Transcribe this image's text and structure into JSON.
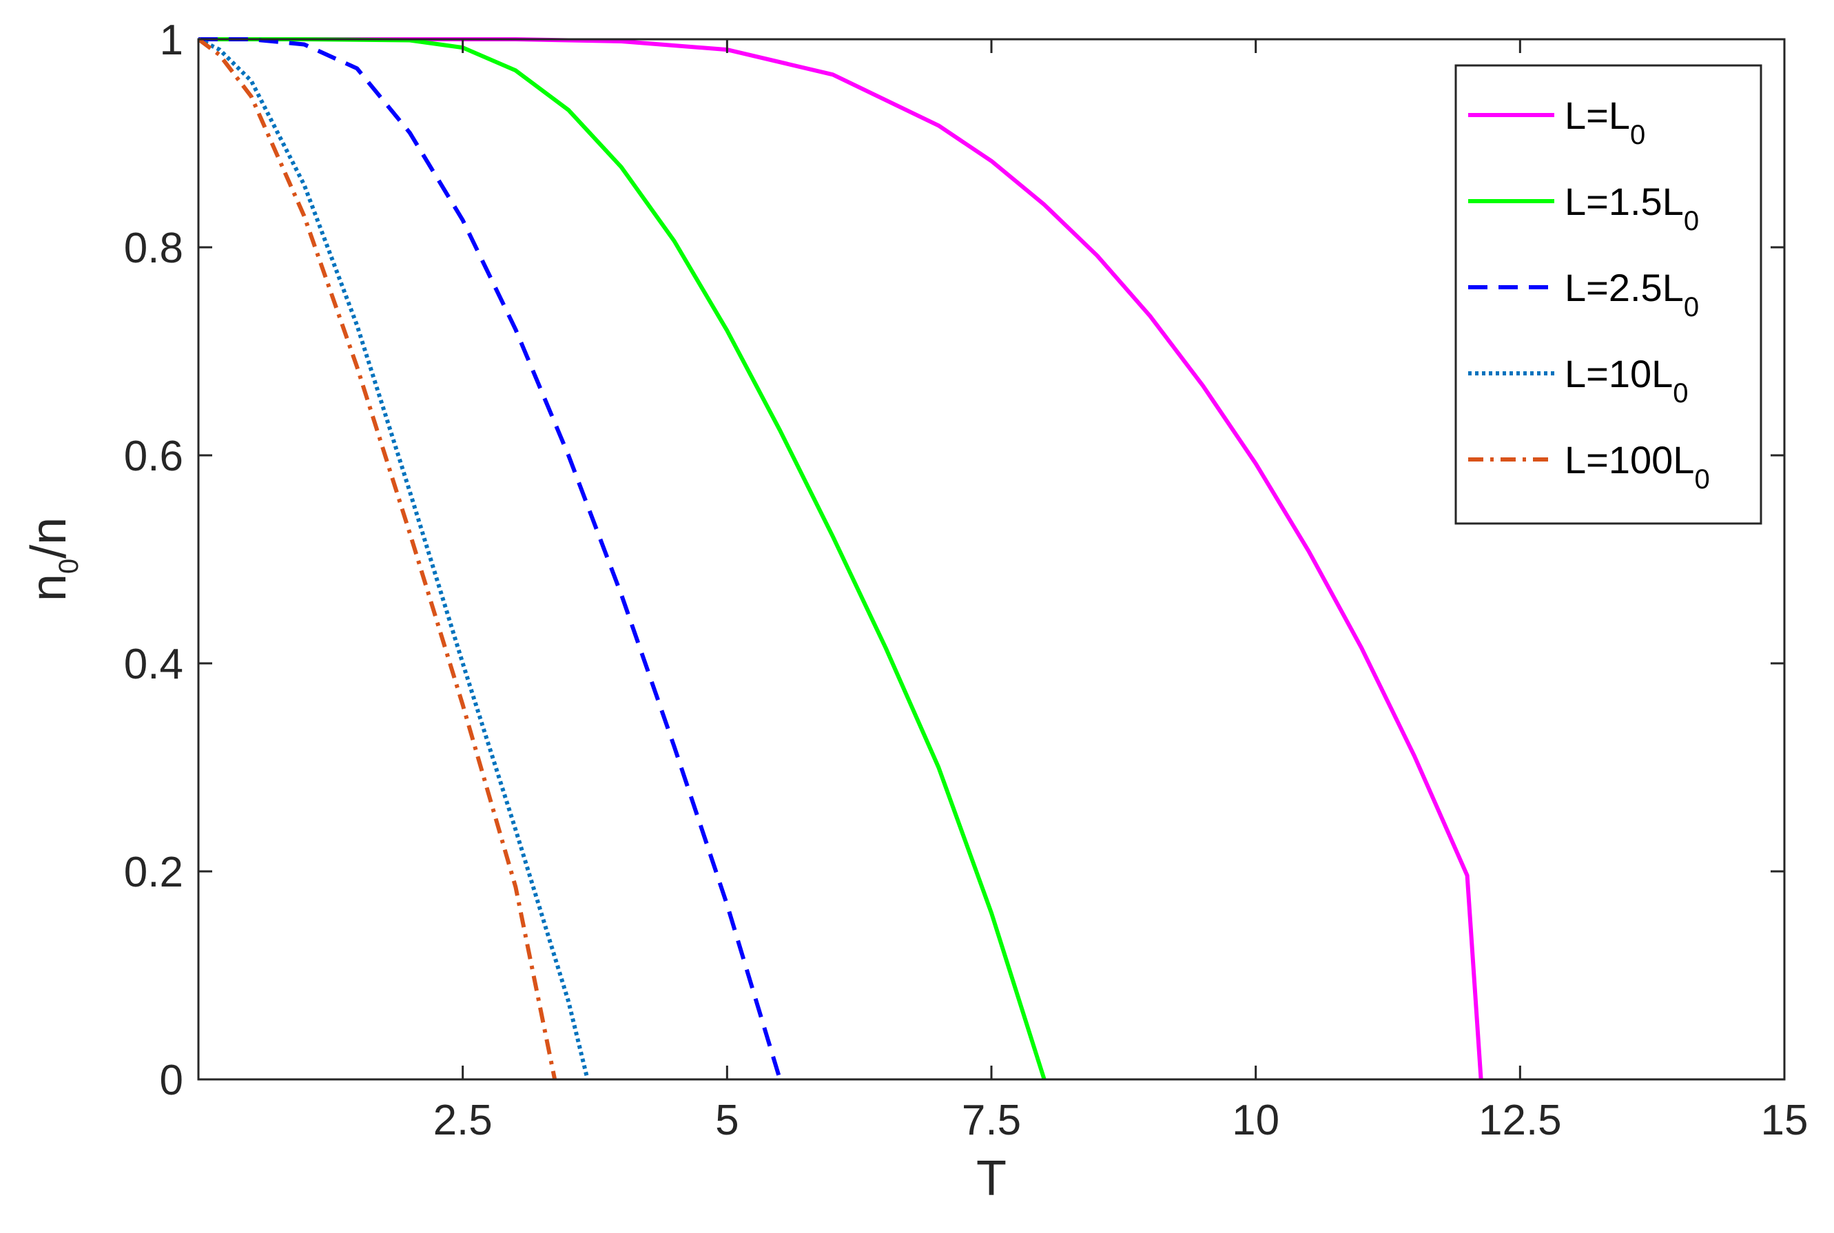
{
  "chart_data": {
    "type": "line",
    "xlabel": "T",
    "ylabel": {
      "base": "n",
      "sub": "0",
      "rest": "/n"
    },
    "xlim": [
      0,
      15
    ],
    "ylim": [
      0,
      1
    ],
    "xticks": [
      2.5,
      5,
      7.5,
      10,
      12.5,
      15
    ],
    "xtick_labels": [
      "2.5",
      "5",
      "7.5",
      "10",
      "12.5",
      "15"
    ],
    "yticks": [
      0,
      0.2,
      0.4,
      0.6,
      0.8,
      1
    ],
    "ytick_labels": [
      "0",
      "0.2",
      "0.4",
      "0.6",
      "0.8",
      "1"
    ],
    "grid": false,
    "legend_position": "top-right",
    "series": [
      {
        "name": "L=L0",
        "label_main": "L=L",
        "label_sub": "0",
        "color": "#FF00FF",
        "dash": "solid",
        "x": [
          0,
          1,
          2,
          3,
          4,
          5,
          6,
          7,
          7.5,
          8,
          8.5,
          9,
          9.5,
          10,
          10.5,
          11,
          11.5,
          12,
          12.13
        ],
        "y": [
          1,
          1,
          1,
          1,
          0.998,
          0.99,
          0.966,
          0.917,
          0.883,
          0.841,
          0.792,
          0.734,
          0.667,
          0.592,
          0.508,
          0.415,
          0.311,
          0.196,
          0
        ]
      },
      {
        "name": "L=1.5L0",
        "label_main": "L=1.5L",
        "label_sub": "0",
        "color": "#00FF00",
        "dash": "solid",
        "x": [
          0,
          1,
          2,
          2.5,
          3,
          3.5,
          4,
          4.5,
          5,
          5.5,
          6,
          6.5,
          7,
          7.5,
          8
        ],
        "y": [
          1,
          1,
          0.999,
          0.992,
          0.97,
          0.932,
          0.877,
          0.806,
          0.72,
          0.624,
          0.522,
          0.415,
          0.3,
          0.16,
          0
        ]
      },
      {
        "name": "L=2.5L0",
        "label_main": "L=2.5L",
        "label_sub": "0",
        "color": "#0000FF",
        "dash": "dashed",
        "x": [
          0,
          0.5,
          1,
          1.5,
          2,
          2.5,
          3,
          3.5,
          4,
          4.5,
          5,
          5.5
        ],
        "y": [
          1,
          1,
          0.995,
          0.972,
          0.91,
          0.826,
          0.721,
          0.6,
          0.466,
          0.32,
          0.168,
          0
        ]
      },
      {
        "name": "L=10L0",
        "label_main": "L=10L",
        "label_sub": "0",
        "color": "#0072BD",
        "dash": "dotted",
        "x": [
          0,
          0.2,
          0.5,
          1,
          1.5,
          2,
          2.5,
          3,
          3.5,
          3.68
        ],
        "y": [
          1,
          0.99,
          0.96,
          0.86,
          0.725,
          0.565,
          0.4,
          0.24,
          0.075,
          0
        ]
      },
      {
        "name": "L=100L0",
        "label_main": "L=100L",
        "label_sub": "0",
        "color": "#D95319",
        "dash": "dashdot",
        "x": [
          0,
          0.2,
          0.5,
          1,
          1.5,
          2,
          2.5,
          3,
          3.37
        ],
        "y": [
          1,
          0.985,
          0.945,
          0.83,
          0.685,
          0.525,
          0.36,
          0.185,
          0
        ]
      }
    ]
  }
}
